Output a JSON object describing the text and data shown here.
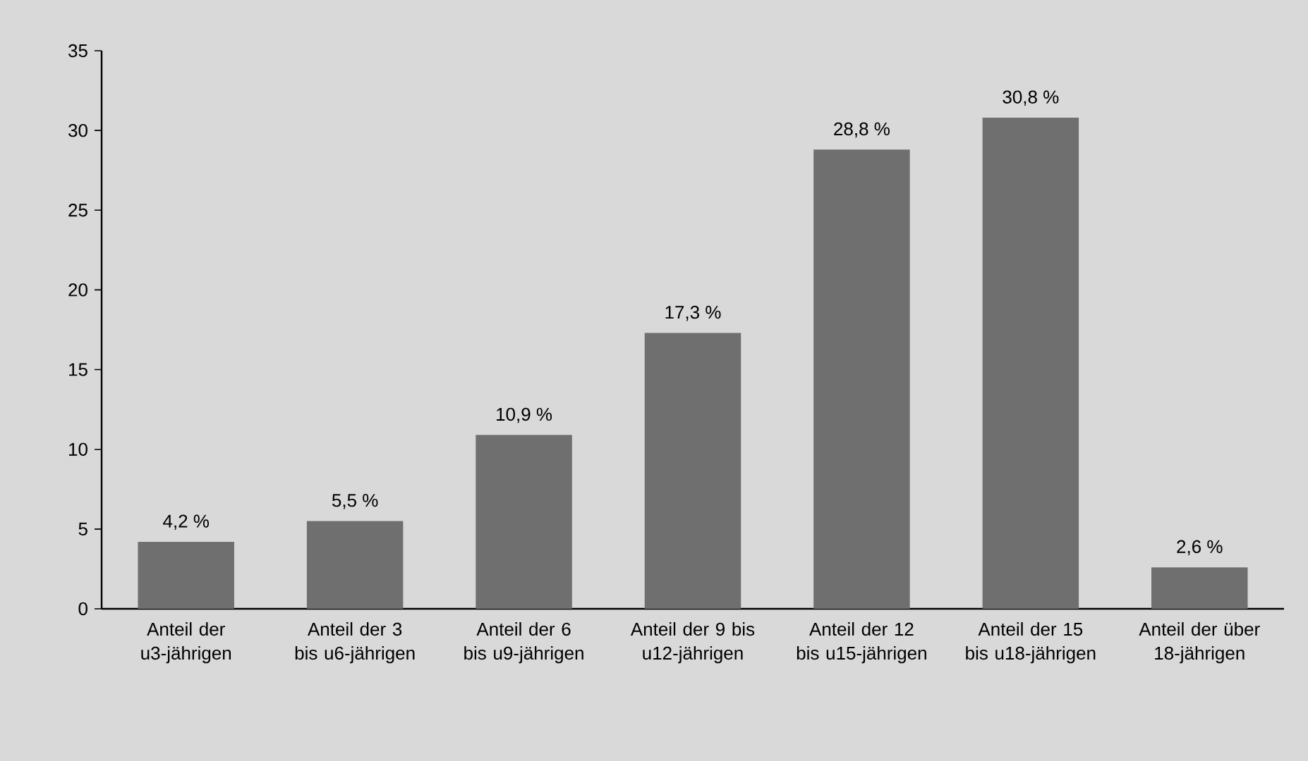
{
  "chart_data": {
    "type": "bar",
    "categories": [
      "Anteil der u3-jährigen",
      "Anteil der 3 bis u6-jährigen",
      "Anteil der 6 bis u9-jährigen",
      "Anteil der 9 bis u12-jährigen",
      "Anteil der 12 bis u15-jährigen",
      "Anteil der 15 bis u18-jährigen",
      "Anteil der über 18-jährigen"
    ],
    "values": [
      4.2,
      5.5,
      10.9,
      17.3,
      28.8,
      30.8,
      2.6
    ],
    "value_labels": [
      "4,2 %",
      "5,5 %",
      "10,9 %",
      "17,3 %",
      "28,8 %",
      "30,8 %",
      "2,6 %"
    ],
    "color": "#6f6f6f",
    "ylim": [
      0,
      35
    ],
    "yticks": [
      0,
      5,
      10,
      15,
      20,
      25,
      30,
      35
    ]
  }
}
